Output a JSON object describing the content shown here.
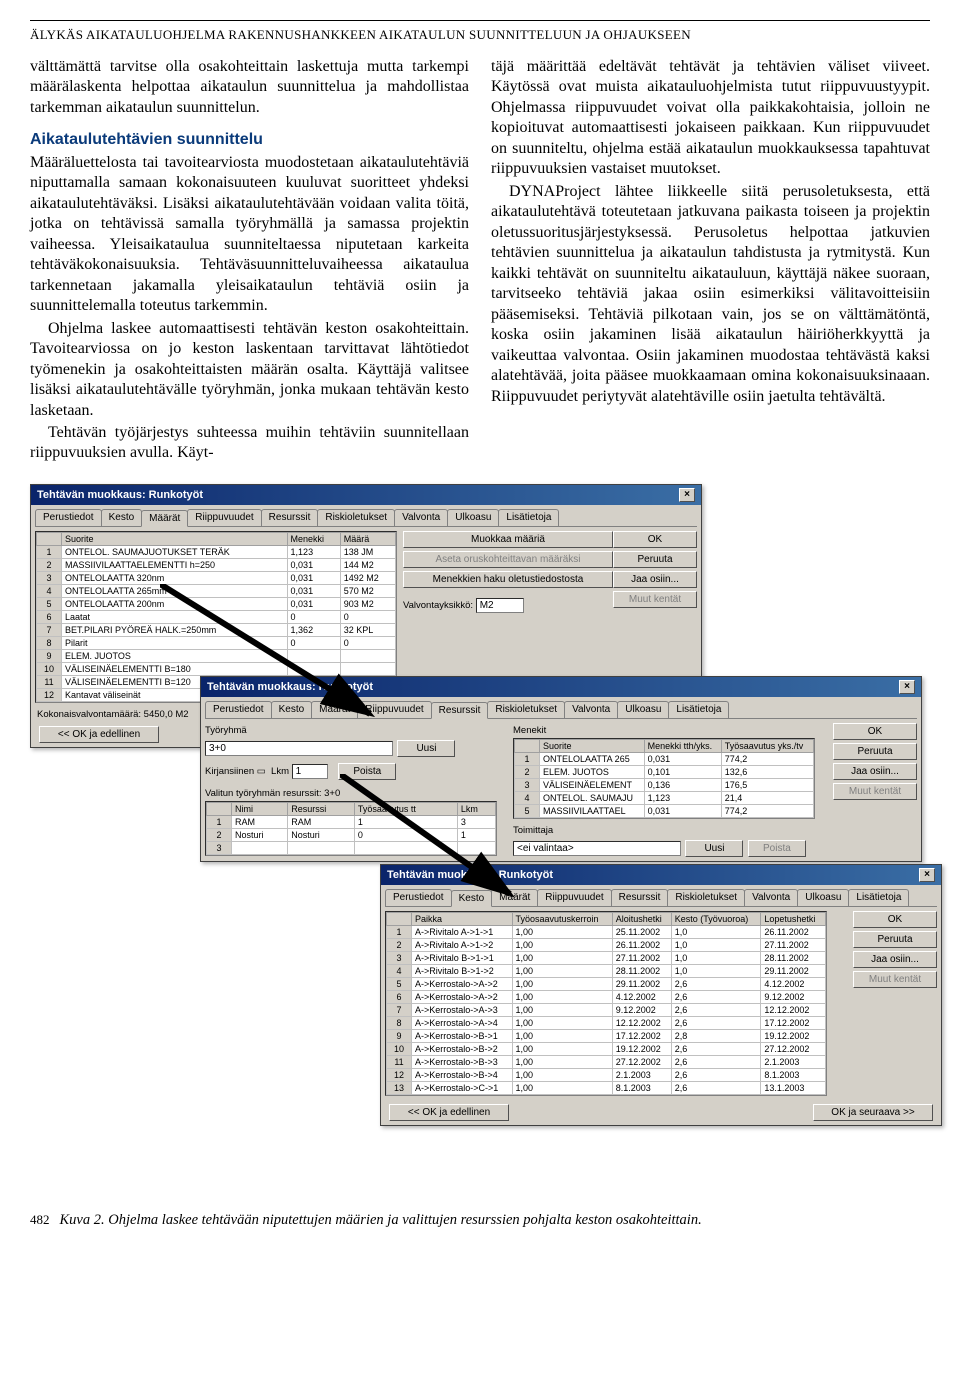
{
  "running_head": "ÄLYKÄS AIKATAULUOHJELMA RAKENNUSHANKKEEN AIKATAULUN SUUNNITTELUUN JA OHJAUKSEEN",
  "left": {
    "p1": "välttämättä tarvitse olla osakohteittain laskettuja mutta tarkempi määrälaskenta helpottaa aikataulun suunnittelua ja mahdollistaa tarkemman aikataulun suunnittelun.",
    "h": "Aikataulutehtävien suunnittelu",
    "p2": "Määräluettelosta tai tavoitearviosta muodostetaan aikataulutehtäviä niputtamalla samaan kokonaisuuteen kuuluvat suoritteet yhdeksi aikataulutehtäväksi. Lisäksi aikataulutehtävään voidaan valita töitä, jotka on tehtävissä samalla työryhmällä ja samassa projektin vaiheessa. Yleisaikataulua suunniteltaessa niputetaan karkeita tehtäväkokonaisuuksia. Tehtäväsuunnitteluvaiheessa aikataulua tarkennetaan jakamalla yleisaikataulun tehtäviä osiin ja suunnittelemalla toteutus tarkemmin.",
    "p3": "Ohjelma laskee automaattisesti tehtävän keston osakohteittain. Tavoitearviossa on jo keston laskentaan tarvittavat lähtötiedot työmenekin ja osakohteittaisten määrän osalta. Käyttäjä valitsee lisäksi aikataulutehtävälle työryhmän, jonka mukaan tehtävän kesto lasketaan.",
    "p4": "Tehtävän työjärjestys suhteessa muihin tehtäviin suunnitellaan riippuvuuksien avulla. Käyt-"
  },
  "right": {
    "p1": "täjä määrittää edeltävät tehtävät ja tehtävien väliset viiveet. Käytössä ovat muista aikatauluohjelmista tutut riippuvuustyypit. Ohjelmassa riippuvuudet voivat olla paikkakohtaisia, jolloin ne kopioituvat automaattisesti jokaiseen paikkaan. Kun riippuvuudet on suunniteltu, ohjelma estää aikataulun muokkauksessa tapahtuvat riippuvuuksien vastaiset muutokset.",
    "p2": "DYNAProject lähtee liikkeelle siitä perusoletuksesta, että aikataulutehtävä toteutetaan jatkuvana paikasta toiseen ja projektin oletussuoritusjärjestyksessä. Perusoletus helpottaa jatkuvien tehtävien suunnittelua ja aikataulun tahdistusta ja rytmitystä. Kun kaikki tehtävät on suunniteltu aikatauluun, käyttäjä näkee suoraan, tarvitseeko tehtäviä jakaa osiin esimerkiksi välitavoitteisiin pääsemiseksi. Tehtäviä pilkotaan vain, jos se on välttämätöntä, koska osiin jakaminen lisää aikataulun häiriöherkkyyttä ja vaikeuttaa valvontaa. Osiin jakaminen muodostaa tehtävästä kaksi alatehtävää, joita pääsee muokkaamaan omina kokonaisuuksinaaan. Riippuvuudet periytyvät alatehtäville osiin jaetulta tehtävältä."
  },
  "tabs": [
    "Perustiedot",
    "Kesto",
    "Määrät",
    "Riippuvuudet",
    "Resurssit",
    "Riskioletukset",
    "Valvonta",
    "Ulkoasu",
    "Lisätietoja"
  ],
  "win_title": "Tehtävän muokkaus: Runkotyöt",
  "btns": {
    "ok": "OK",
    "cancel": "Peruuta",
    "jaa": "Jaa osiin...",
    "muut": "Muut kentät"
  },
  "w1": {
    "cols": [
      "",
      "Suorite",
      "Menekki",
      "Määrä"
    ],
    "rows": [
      [
        "1",
        "ONTELOL. SAUMAJUOTUKSET TERÄK",
        "1,123",
        "138 JM"
      ],
      [
        "2",
        "MASSIIVILAATTAELEMENTTI h=250",
        "0,031",
        "144 M2"
      ],
      [
        "3",
        "ONTELOLAATTA 320nm",
        "0,031",
        "1492 M2"
      ],
      [
        "4",
        "ONTELOLAATTA 265mm",
        "0,031",
        "570 M2"
      ],
      [
        "5",
        "ONTELOLAATTA 200nm",
        "0,031",
        "903 M2"
      ],
      [
        "6",
        "Laatat",
        "0",
        "0"
      ],
      [
        "7",
        "BET.PILARI PYÖREÄ HALK.=250mm",
        "1,362",
        "32 KPL"
      ],
      [
        "8",
        "Pilarit",
        "0",
        "0"
      ],
      [
        "9",
        "ELEM. JUOTOS",
        "",
        ""
      ],
      [
        "10",
        "VÄLISEINÄELEMENTTI B=180",
        "",
        ""
      ],
      [
        "11",
        "VÄLISEINÄELEMENTTI B=120",
        "",
        ""
      ],
      [
        "12",
        "Kantavat väliseinät",
        "",
        ""
      ]
    ],
    "footer": "Kokonaisvalvontamäärä: 5450,0 M2",
    "side_btns": [
      "Muokkaa määriä",
      "Aseta oruskohteittavan määräksi",
      "Menekkien haku oletustiedostosta"
    ],
    "valv_label": "Valvontayksikkö:",
    "valv_val": "M2",
    "ok_prev": "<< OK ja edellinen"
  },
  "w2": {
    "tr_label": "Työryhmä",
    "tr_val": "3+0",
    "uusi": "Uusi",
    "kirj_label": "Kirjansiinen",
    "lkm_label": "Lkm",
    "lkm_val": "1",
    "poista": "Poista",
    "valittu": "Valitun työryhmän resurssit: 3+0",
    "rcols": [
      "",
      "Nimi",
      "Resurssi",
      "Työsaavutus tt",
      "Lkm"
    ],
    "rrows": [
      [
        "1",
        "RAM",
        "RAM",
        "1",
        "3"
      ],
      [
        "2",
        "Nosturi",
        "Nosturi",
        "0",
        "1"
      ],
      [
        "3",
        "",
        "",
        "",
        ""
      ]
    ],
    "mcols": [
      "",
      "Suorite",
      "Menekki tth/yks.",
      "Työsaavutus yks./tv"
    ],
    "mrows": [
      [
        "1",
        "ONTELOLAATTA 265",
        "0,031",
        "774,2"
      ],
      [
        "2",
        "ELEM. JUOTOS",
        "0,101",
        "132,6"
      ],
      [
        "3",
        "VÄLISEINÄELEMENT",
        "0,136",
        "176,5"
      ],
      [
        "4",
        "ONTELOL. SAUMAJU",
        "1,123",
        "21,4"
      ],
      [
        "5",
        "MASSIIVILAATTAEL",
        "0,031",
        "774,2"
      ]
    ],
    "men_label": "Menekit",
    "toim_label": "Toimittaja",
    "toim_val": "<ei valintaa>"
  },
  "w3": {
    "cols": [
      "",
      "Paikka",
      "Työosaavutuskerroin",
      "Aloitushetki",
      "Kesto (Työvuoroa)",
      "Lopetushetki"
    ],
    "rows": [
      [
        "1",
        "A->Rivitalo A->1->1",
        "1,00",
        "25.11.2002",
        "1,0",
        "26.11.2002"
      ],
      [
        "2",
        "A->Rivitalo A->1->2",
        "1,00",
        "26.11.2002",
        "1,0",
        "27.11.2002"
      ],
      [
        "3",
        "A->Rivitalo B->1->1",
        "1,00",
        "27.11.2002",
        "1,0",
        "28.11.2002"
      ],
      [
        "4",
        "A->Rivitalo B->1->2",
        "1,00",
        "28.11.2002",
        "1,0",
        "29.11.2002"
      ],
      [
        "5",
        "A->Kerrostalo->A->2",
        "1,00",
        "29.11.2002",
        "2,6",
        "4.12.2002"
      ],
      [
        "6",
        "A->Kerrostalo->A->2",
        "1,00",
        "4.12.2002",
        "2,6",
        "9.12.2002"
      ],
      [
        "7",
        "A->Kerrostalo->A->3",
        "1,00",
        "9.12.2002",
        "2,6",
        "12.12.2002"
      ],
      [
        "8",
        "A->Kerrostalo->A->4",
        "1,00",
        "12.12.2002",
        "2,6",
        "17.12.2002"
      ],
      [
        "9",
        "A->Kerrostalo->B->1",
        "1,00",
        "17.12.2002",
        "2,8",
        "19.12.2002"
      ],
      [
        "10",
        "A->Kerrostalo->B->2",
        "1,00",
        "19.12.2002",
        "2,6",
        "27.12.2002"
      ],
      [
        "11",
        "A->Kerrostalo->B->3",
        "1,00",
        "27.12.2002",
        "2,6",
        "2.1.2003"
      ],
      [
        "12",
        "A->Kerrostalo->B->4",
        "1,00",
        "2.1.2003",
        "2,6",
        "8.1.2003"
      ],
      [
        "13",
        "A->Kerrostalo->C->1",
        "1,00",
        "8.1.2003",
        "2,6",
        "13.1.2003"
      ]
    ],
    "ok_next": "OK ja seuraava >>"
  },
  "caption": "Kuva 2. Ohjelma laskee tehtävään niputettujen määrien ja valittujen resurssien pohjalta keston osakohteittain.",
  "page_num": "482"
}
